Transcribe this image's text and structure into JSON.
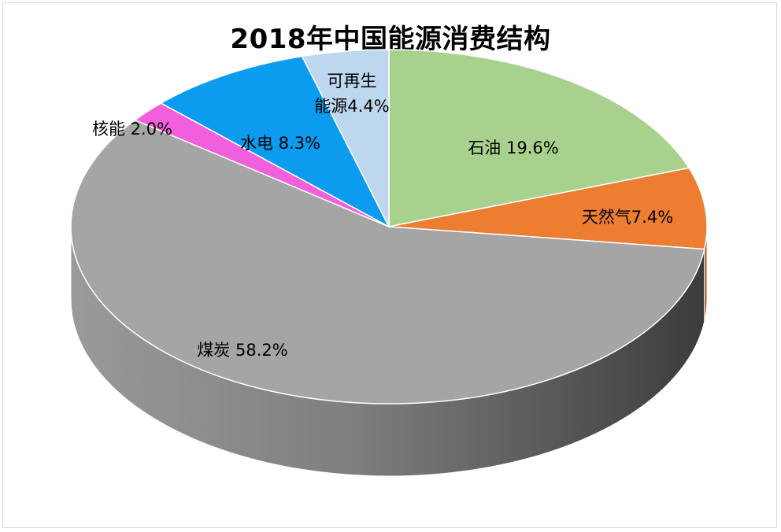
{
  "chart_data": {
    "type": "pie",
    "title": "2018年中国能源消费结构",
    "style": "3d",
    "slices": [
      {
        "label": "石油 19.6%",
        "name": "石油",
        "value": 19.6,
        "color": "#a9d18e"
      },
      {
        "label": "天然气7.4%",
        "name": "天然气",
        "value": 7.4,
        "color": "#ed7d31"
      },
      {
        "label": "煤炭  58.2%",
        "name": "煤炭",
        "value": 58.2,
        "color": "#a5a5a5"
      },
      {
        "label": "核能 2.0%",
        "name": "核能",
        "value": 2.0,
        "color": "#f25fdc"
      },
      {
        "label": "水电 8.3%",
        "name": "水电",
        "value": 8.3,
        "color": "#0b9bef"
      },
      {
        "label_lines": [
          "可再生",
          "能源4.4%"
        ],
        "name": "可再生能源",
        "value": 4.4,
        "color": "#bdd7ee"
      }
    ]
  }
}
